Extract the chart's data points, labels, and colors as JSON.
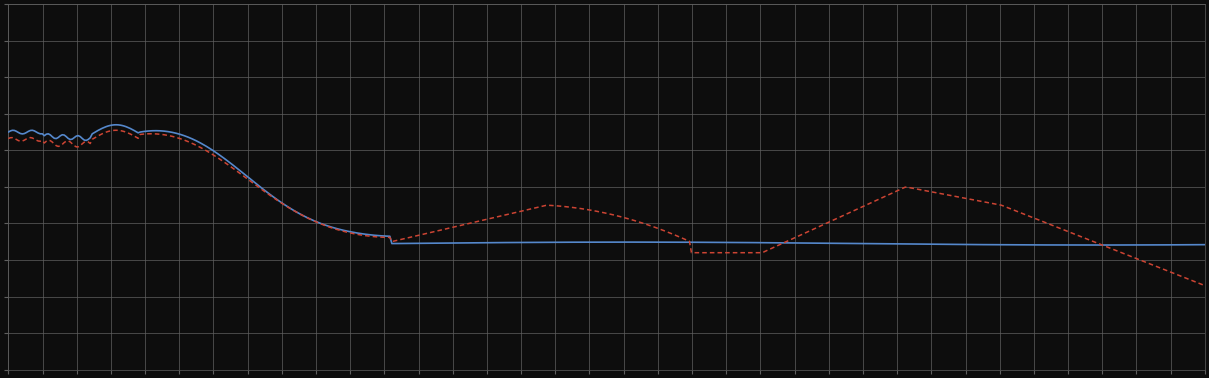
{
  "background_color": "#0d0d0d",
  "plot_bg_color": "#0d0d0d",
  "grid_color": "#606060",
  "blue_line_color": "#5588cc",
  "red_line_color": "#cc4433",
  "figsize": [
    12.09,
    3.78
  ],
  "dpi": 100,
  "xlim": [
    0,
    100
  ],
  "ylim": [
    0,
    10
  ],
  "n_x_gridlines": 35,
  "n_y_gridlines": 10
}
